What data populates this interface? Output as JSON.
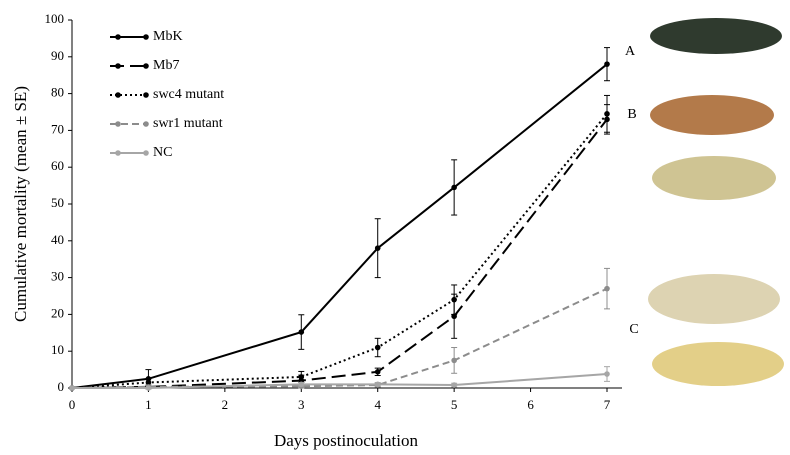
{
  "chart_data": {
    "type": "line",
    "y_label": "Cumulative mortality (mean ± SE)",
    "x_label": "Days postinoculation",
    "x": [
      0,
      1,
      3,
      4,
      5,
      7
    ],
    "xlim": [
      0,
      7
    ],
    "xticks": [
      0,
      1,
      2,
      3,
      4,
      5,
      6,
      7
    ],
    "ylim": [
      0,
      100
    ],
    "yticks": [
      0,
      10,
      20,
      30,
      40,
      50,
      60,
      70,
      80,
      90,
      100
    ],
    "grid": false,
    "legend": "top-left",
    "series": [
      {
        "name": "MbK",
        "color": "#000000",
        "dash": "solid",
        "values": [
          0,
          2.5,
          15.2,
          38,
          54.5,
          88
        ],
        "errors": [
          0,
          2.5,
          4.7,
          8,
          7.5,
          4.5
        ]
      },
      {
        "name": "Mb7",
        "color": "#000000",
        "dash": "long-dash",
        "values": [
          0,
          0.3,
          2,
          4.4,
          19.5,
          73
        ],
        "errors": [
          0,
          0.5,
          1.5,
          1,
          6,
          4
        ]
      },
      {
        "name": "swc4 mutant",
        "color": "#000000",
        "dash": "dot",
        "values": [
          0,
          1.5,
          3,
          11,
          24,
          74.5
        ],
        "errors": [
          0,
          1,
          1.5,
          2.5,
          4,
          5
        ]
      },
      {
        "name": "swr1 mutant",
        "color": "#8c8c8c",
        "dash": "dash",
        "values": [
          0,
          0.3,
          0.5,
          0.8,
          7.5,
          27
        ],
        "errors": [
          0,
          0.5,
          0.5,
          0.5,
          3.5,
          5.5
        ]
      },
      {
        "name": "NC",
        "color": "#a6a6a6",
        "dash": "solid",
        "values": [
          0,
          0,
          1,
          1,
          0.8,
          3.8
        ],
        "errors": [
          0,
          0,
          0.5,
          0.5,
          0.5,
          2
        ]
      }
    ],
    "annotations": [
      "A",
      "B",
      "C"
    ]
  }
}
